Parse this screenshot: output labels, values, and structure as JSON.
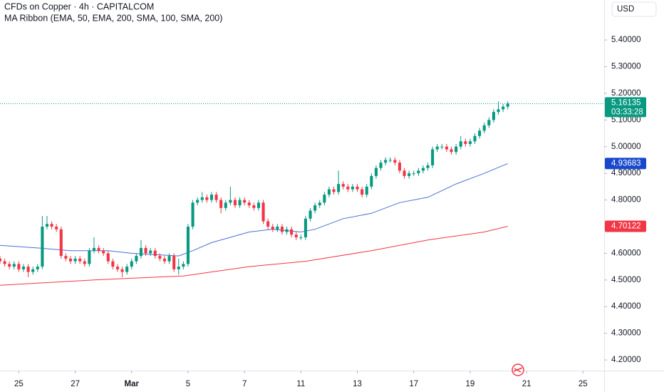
{
  "chart_data": {
    "type": "candlestick",
    "title": "CFDs on Copper · 4h · CAPITALCOM",
    "indicator": "MA Ribbon (EMA, 50, EMA, 200, SMA, 100, SMA, 200)",
    "currency": "USD",
    "countdown": "03:33:28",
    "up_color": "#089981",
    "down_color": "#f23645",
    "open": [
      4.58,
      4.57,
      4.56,
      4.55,
      4.56,
      4.54,
      4.55,
      4.53,
      4.54,
      4.55,
      4.7,
      4.71,
      4.7,
      4.69,
      4.59,
      4.58,
      4.57,
      4.58,
      4.57,
      4.56,
      4.61,
      4.62,
      4.61,
      4.6,
      4.57,
      4.55,
      4.54,
      4.53,
      4.55,
      4.57,
      4.59,
      4.62,
      4.6,
      4.61,
      4.59,
      4.58,
      4.57,
      4.59,
      4.54,
      4.55,
      4.56,
      4.7,
      4.79,
      4.8,
      4.81,
      4.8,
      4.82,
      4.8,
      4.77,
      4.79,
      4.8,
      4.78,
      4.8,
      4.79,
      4.78,
      4.77,
      4.79,
      4.72,
      4.7,
      4.69,
      4.7,
      4.68,
      4.69,
      4.67,
      4.66,
      4.66,
      4.73,
      4.76,
      4.78,
      4.79,
      4.82,
      4.84,
      4.83,
      4.86,
      4.85,
      4.84,
      4.85,
      4.84,
      4.82,
      4.85,
      4.89,
      4.92,
      4.94,
      4.95,
      4.95,
      4.94,
      4.91,
      4.89,
      4.9,
      4.9,
      4.91,
      4.92,
      4.93,
      4.99,
      5.0,
      5.0,
      4.99,
      4.98,
      5.0,
      5.02,
      5.01,
      5.02,
      5.04,
      5.06,
      5.08,
      5.1,
      5.13,
      5.14,
      5.15
    ],
    "high": [
      4.59,
      4.58,
      4.57,
      4.57,
      4.57,
      4.56,
      4.56,
      4.55,
      4.56,
      4.74,
      4.74,
      4.72,
      4.71,
      4.7,
      4.6,
      4.59,
      4.59,
      4.59,
      4.58,
      4.62,
      4.66,
      4.63,
      4.62,
      4.61,
      4.58,
      4.56,
      4.55,
      4.56,
      4.58,
      4.6,
      4.65,
      4.63,
      4.62,
      4.62,
      4.6,
      4.59,
      4.6,
      4.6,
      4.58,
      4.57,
      4.71,
      4.8,
      4.81,
      4.83,
      4.82,
      4.83,
      4.83,
      4.81,
      4.8,
      4.85,
      4.81,
      4.81,
      4.81,
      4.8,
      4.79,
      4.8,
      4.8,
      4.73,
      4.71,
      4.71,
      4.71,
      4.7,
      4.7,
      4.68,
      4.67,
      4.74,
      4.77,
      4.79,
      4.8,
      4.83,
      4.85,
      4.85,
      4.91,
      4.87,
      4.86,
      4.86,
      4.86,
      4.85,
      4.86,
      4.9,
      4.93,
      4.95,
      4.96,
      4.96,
      4.96,
      4.95,
      4.92,
      4.91,
      4.91,
      4.92,
      4.93,
      4.94,
      5.0,
      5.01,
      5.01,
      5.01,
      5.0,
      5.01,
      5.04,
      5.03,
      5.03,
      5.05,
      5.07,
      5.09,
      5.11,
      5.14,
      5.17,
      5.16,
      5.17
    ],
    "low": [
      4.56,
      4.55,
      4.54,
      4.54,
      4.53,
      4.53,
      4.51,
      4.52,
      4.53,
      4.54,
      4.69,
      4.69,
      4.68,
      4.58,
      4.57,
      4.56,
      4.56,
      4.56,
      4.55,
      4.55,
      4.6,
      4.6,
      4.59,
      4.56,
      4.54,
      4.53,
      4.51,
      4.52,
      4.54,
      4.56,
      4.58,
      4.59,
      4.59,
      4.58,
      4.57,
      4.56,
      4.56,
      4.53,
      4.52,
      4.54,
      4.55,
      4.69,
      4.78,
      4.79,
      4.79,
      4.79,
      4.79,
      4.75,
      4.76,
      4.78,
      4.77,
      4.77,
      4.78,
      4.77,
      4.76,
      4.76,
      4.71,
      4.69,
      4.68,
      4.68,
      4.67,
      4.67,
      4.66,
      4.65,
      4.65,
      4.65,
      4.72,
      4.75,
      4.77,
      4.78,
      4.81,
      4.82,
      4.82,
      4.84,
      4.83,
      4.83,
      4.83,
      4.81,
      4.81,
      4.84,
      4.88,
      4.91,
      4.93,
      4.94,
      4.93,
      4.9,
      4.88,
      4.88,
      4.89,
      4.89,
      4.9,
      4.91,
      4.92,
      4.98,
      4.99,
      4.98,
      4.97,
      4.97,
      4.99,
      5.0,
      5.0,
      5.01,
      5.03,
      5.05,
      5.07,
      5.09,
      5.12,
      5.13,
      5.14
    ],
    "close": [
      4.57,
      4.56,
      4.55,
      4.56,
      4.54,
      4.55,
      4.53,
      4.54,
      4.55,
      4.7,
      4.71,
      4.7,
      4.69,
      4.59,
      4.58,
      4.57,
      4.58,
      4.57,
      4.56,
      4.61,
      4.62,
      4.61,
      4.6,
      4.57,
      4.55,
      4.54,
      4.53,
      4.55,
      4.57,
      4.59,
      4.62,
      4.6,
      4.61,
      4.59,
      4.58,
      4.57,
      4.59,
      4.54,
      4.55,
      4.56,
      4.7,
      4.79,
      4.8,
      4.81,
      4.8,
      4.82,
      4.8,
      4.77,
      4.79,
      4.8,
      4.78,
      4.8,
      4.79,
      4.78,
      4.77,
      4.79,
      4.72,
      4.7,
      4.69,
      4.7,
      4.68,
      4.69,
      4.67,
      4.66,
      4.66,
      4.73,
      4.76,
      4.78,
      4.79,
      4.82,
      4.84,
      4.83,
      4.86,
      4.85,
      4.84,
      4.85,
      4.84,
      4.82,
      4.85,
      4.89,
      4.92,
      4.94,
      4.95,
      4.95,
      4.94,
      4.91,
      4.89,
      4.9,
      4.9,
      4.91,
      4.92,
      4.93,
      4.99,
      5.0,
      5.0,
      4.99,
      4.98,
      5.0,
      5.02,
      5.01,
      5.02,
      5.04,
      5.06,
      5.08,
      5.1,
      5.13,
      5.14,
      5.15,
      5.16135
    ],
    "lines": [
      {
        "color": "#4a6fd6",
        "label_color": "#1848cc",
        "x": [
          0,
          8,
          15,
          23,
          28,
          38,
          41,
          45,
          53,
          58,
          64,
          67,
          73,
          79,
          85,
          91,
          97,
          103,
          108
        ],
        "values": [
          4.63,
          4.62,
          4.61,
          4.61,
          4.6,
          4.59,
          4.61,
          4.64,
          4.68,
          4.69,
          4.68,
          4.69,
          4.73,
          4.75,
          4.79,
          4.81,
          4.86,
          4.9,
          4.93683
        ]
      },
      {
        "color": "#f23645",
        "label_color": "#f23645",
        "x": [
          0,
          20,
          39,
          53,
          65,
          79,
          91,
          103,
          108
        ],
        "values": [
          4.48,
          4.5,
          4.515,
          4.55,
          4.57,
          4.61,
          4.65,
          4.68,
          4.70122
        ]
      }
    ],
    "xlim": [
      0,
      128.5
    ],
    "xticks": [
      {
        "value": 4,
        "label": "25"
      },
      {
        "value": 16,
        "label": "27"
      },
      {
        "value": 28,
        "label": "Mar"
      },
      {
        "value": 40,
        "label": "5"
      },
      {
        "value": 52,
        "label": "7"
      },
      {
        "value": 64,
        "label": "11"
      },
      {
        "value": 76,
        "label": "13"
      },
      {
        "value": 88,
        "label": "17"
      },
      {
        "value": 100,
        "label": "19"
      },
      {
        "value": 112,
        "label": "21"
      },
      {
        "value": 124,
        "label": "25"
      }
    ],
    "ylim": [
      4.16,
      5.55
    ],
    "yticks": [
      {
        "value": 4.2,
        "label": "4.20000"
      },
      {
        "value": 4.3,
        "label": "4.30000"
      },
      {
        "value": 4.4,
        "label": "4.40000"
      },
      {
        "value": 4.5,
        "label": "4.50000"
      },
      {
        "value": 4.6,
        "label": "4.60000"
      },
      {
        "value": 4.7,
        "label": "4.70000"
      },
      {
        "value": 4.8,
        "label": "4.80000"
      },
      {
        "value": 4.9,
        "label": "4.90000"
      },
      {
        "value": 5.0,
        "label": "5.00000"
      },
      {
        "value": 5.1,
        "label": "5.10000"
      },
      {
        "value": 5.2,
        "label": "5.20000"
      },
      {
        "value": 5.3,
        "label": "5.30000"
      },
      {
        "value": 5.4,
        "label": "5.40000"
      }
    ],
    "grid": false
  }
}
